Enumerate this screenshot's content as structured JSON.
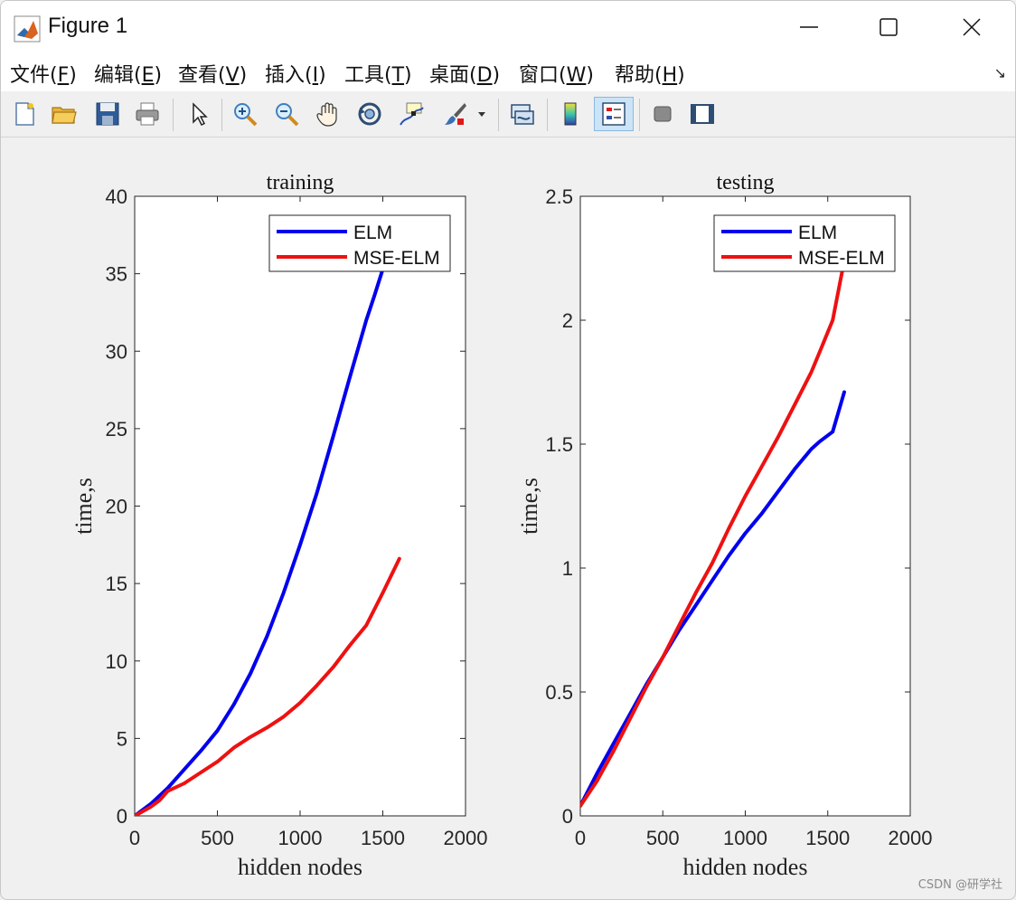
{
  "window": {
    "title": "Figure 1",
    "controls": [
      "minimize",
      "maximize",
      "close"
    ]
  },
  "menu": {
    "items": [
      {
        "text": "文件(",
        "key": "F",
        "close": ")"
      },
      {
        "text": "编辑(",
        "key": "E",
        "close": ")"
      },
      {
        "text": "查看(",
        "key": "V",
        "close": ")"
      },
      {
        "text": "插入(",
        "key": "I",
        "close": ")"
      },
      {
        "text": "工具(",
        "key": "T",
        "close": ")"
      },
      {
        "text": "桌面(",
        "key": "D",
        "close": ")"
      },
      {
        "text": "窗口(",
        "key": "W",
        "close": ")"
      },
      {
        "text": "帮助(",
        "key": "H",
        "close": ")"
      }
    ]
  },
  "toolbar": {
    "icons": [
      "new-file-icon",
      "open-folder-icon",
      "save-icon",
      "print-icon",
      "pointer-icon",
      "zoom-in-icon",
      "zoom-out-icon",
      "pan-hand-icon",
      "rotate-3d-icon",
      "data-cursor-icon",
      "brush-icon",
      "link-plots-icon",
      "colorbar-icon",
      "legend-icon",
      "hide-plot-tools-icon",
      "show-plot-tools-icon"
    ]
  },
  "watermark": "CSDN @研学社",
  "colors": {
    "elm": "#0000ee",
    "mse_elm": "#ee1111"
  },
  "chart_data": [
    {
      "type": "line",
      "title": "training",
      "xlabel": "hidden nodes",
      "ylabel": "time,s",
      "xlim": [
        0,
        2000
      ],
      "ylim": [
        0,
        40
      ],
      "xticks": [
        0,
        500,
        1000,
        1500,
        2000
      ],
      "yticks": [
        0,
        5,
        10,
        15,
        20,
        25,
        30,
        35,
        40
      ],
      "legend_position": "top-right",
      "series": [
        {
          "name": "ELM",
          "color": "#0000ee",
          "x": [
            0,
            100,
            200,
            300,
            400,
            500,
            600,
            700,
            800,
            900,
            1000,
            1100,
            1200,
            1300,
            1400,
            1450,
            1500,
            1550
          ],
          "y": [
            0,
            0.8,
            1.8,
            3.0,
            4.2,
            5.5,
            7.2,
            9.2,
            11.6,
            14.4,
            17.5,
            20.8,
            24.5,
            28.3,
            32.0,
            33.6,
            35.3,
            37.2
          ]
        },
        {
          "name": "MSE-ELM",
          "color": "#ee1111",
          "x": [
            0,
            100,
            150,
            200,
            300,
            400,
            500,
            600,
            700,
            800,
            900,
            1000,
            1100,
            1200,
            1300,
            1400,
            1500,
            1600
          ],
          "y": [
            0,
            0.6,
            1.0,
            1.6,
            2.1,
            2.8,
            3.5,
            4.4,
            5.1,
            5.7,
            6.4,
            7.3,
            8.4,
            9.6,
            11.0,
            12.3,
            14.4,
            16.6
          ]
        }
      ]
    },
    {
      "type": "line",
      "title": "testing",
      "xlabel": "hidden nodes",
      "ylabel": "time,s",
      "xlim": [
        0,
        2000
      ],
      "ylim": [
        0,
        2.5
      ],
      "xticks": [
        0,
        500,
        1000,
        1500,
        2000
      ],
      "yticks": [
        0,
        0.5,
        1,
        1.5,
        2,
        2.5
      ],
      "legend_position": "top-right",
      "series": [
        {
          "name": "ELM",
          "color": "#0000ee",
          "x": [
            0,
            100,
            200,
            300,
            400,
            500,
            600,
            700,
            800,
            900,
            1000,
            1100,
            1200,
            1300,
            1400,
            1450,
            1530,
            1600
          ],
          "y": [
            0.04,
            0.17,
            0.29,
            0.41,
            0.53,
            0.64,
            0.75,
            0.85,
            0.95,
            1.05,
            1.14,
            1.22,
            1.31,
            1.4,
            1.48,
            1.51,
            1.55,
            1.71
          ]
        },
        {
          "name": "MSE-ELM",
          "color": "#ee1111",
          "x": [
            0,
            100,
            200,
            300,
            400,
            500,
            600,
            700,
            800,
            900,
            1000,
            1100,
            1200,
            1300,
            1400,
            1450,
            1530,
            1600
          ],
          "y": [
            0.04,
            0.14,
            0.26,
            0.39,
            0.52,
            0.64,
            0.77,
            0.9,
            1.02,
            1.16,
            1.29,
            1.41,
            1.53,
            1.66,
            1.79,
            1.87,
            2.0,
            2.24
          ]
        }
      ]
    }
  ]
}
